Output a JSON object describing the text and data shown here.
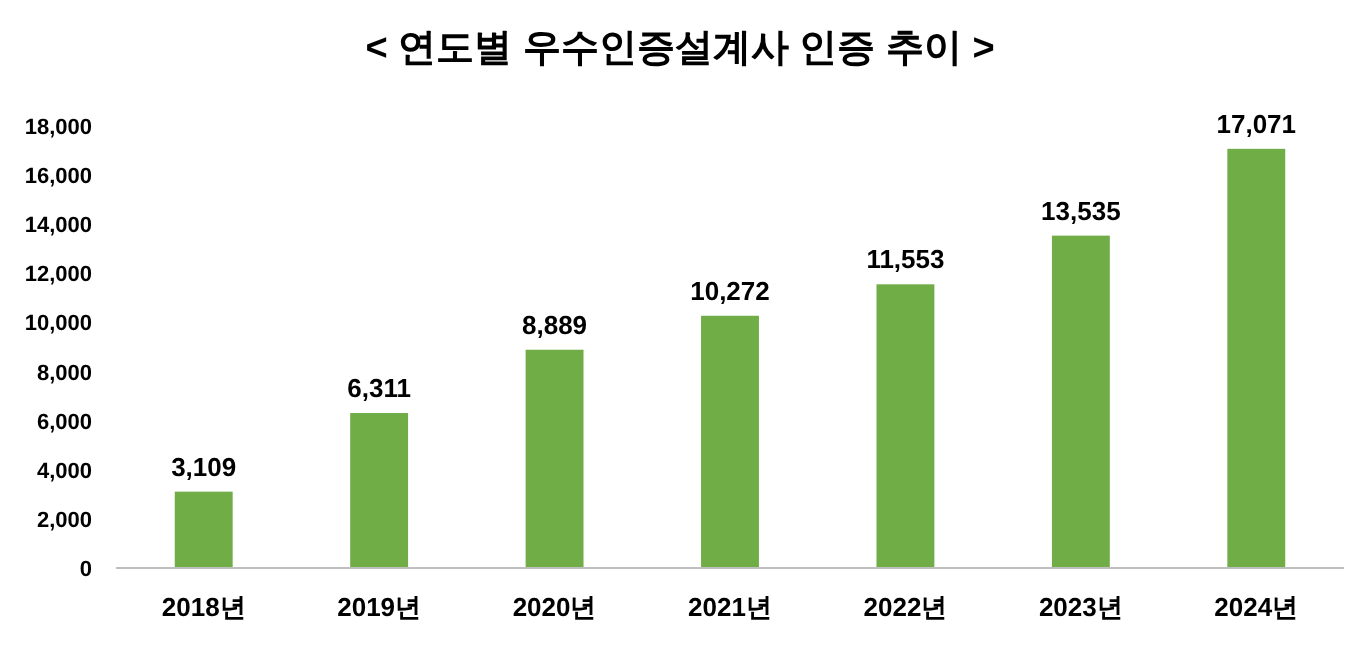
{
  "chart_data": {
    "type": "bar",
    "title": "< 연도별 우수인증설계사 인증 추이 >",
    "categories": [
      "2018년",
      "2019년",
      "2020년",
      "2021년",
      "2022년",
      "2023년",
      "2024년"
    ],
    "values": [
      3109,
      6311,
      8889,
      10272,
      11553,
      13535,
      17071
    ],
    "value_labels": [
      "3,109",
      "6,311",
      "8,889",
      "10,272",
      "11,553",
      "13,535",
      "17,071"
    ],
    "color": "#70ad47",
    "ylim": [
      0,
      18000
    ],
    "yticks": [
      0,
      {
        "value": 2000,
        "label": "2,000"
      },
      {
        "value": 4000,
        "label": "4,000"
      },
      {
        "value": 6000,
        "label": "6,000"
      },
      {
        "value": 8000,
        "label": "8,000"
      },
      {
        "value": 10000,
        "label": "10,000"
      },
      {
        "value": 12000,
        "label": "12,000"
      },
      {
        "value": 14000,
        "label": "14,000"
      },
      {
        "value": 16000,
        "label": "16,000"
      },
      {
        "value": 18000,
        "label": "18,000"
      }
    ],
    "grid": false
  }
}
